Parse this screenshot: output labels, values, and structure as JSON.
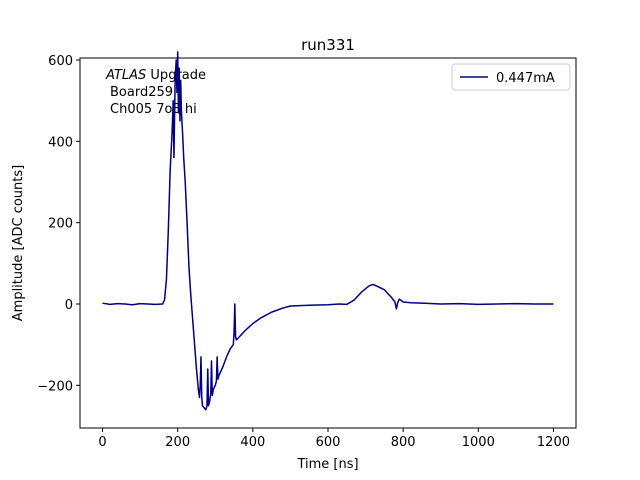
{
  "chart_data": {
    "type": "line",
    "title": "run331",
    "x_label": "Time [ns]",
    "y_label": "Amplitude [ADC counts]",
    "annotations": [
      "ATLAS",
      "Upgrade",
      "Board259",
      "Ch005 7o8 hi"
    ],
    "legend": "upper right",
    "x": [
      0,
      20,
      40,
      60,
      80,
      100,
      120,
      140,
      160,
      165,
      170,
      175,
      180,
      185,
      188,
      190,
      193,
      196,
      198,
      200,
      202,
      204,
      206,
      208,
      210,
      213,
      216,
      220,
      225,
      230,
      235,
      240,
      245,
      250,
      255,
      258,
      260,
      262,
      264,
      266,
      270,
      275,
      278,
      280,
      282,
      285,
      288,
      290,
      292,
      295,
      300,
      303,
      305,
      307,
      310,
      320,
      330,
      340,
      348,
      350,
      352,
      354,
      356,
      360,
      380,
      400,
      420,
      450,
      480,
      500,
      550,
      600,
      630,
      650,
      670,
      690,
      710,
      720,
      730,
      750,
      770,
      778,
      782,
      786,
      790,
      800,
      820,
      850,
      900,
      950,
      1000,
      1050,
      1100,
      1150,
      1200
    ],
    "series": [
      {
        "name": "0.447mA",
        "color": "#000080",
        "values": [
          2,
          -1,
          1,
          0,
          -2,
          1,
          0,
          -1,
          0,
          10,
          60,
          180,
          330,
          420,
          500,
          360,
          540,
          600,
          520,
          620,
          470,
          580,
          450,
          550,
          470,
          420,
          360,
          300,
          200,
          90,
          20,
          -40,
          -100,
          -160,
          -210,
          -230,
          -200,
          -130,
          -230,
          -250,
          -255,
          -260,
          -250,
          -160,
          -250,
          -240,
          -220,
          -140,
          -225,
          -210,
          -200,
          -190,
          -130,
          -185,
          -175,
          -155,
          -130,
          -110,
          -100,
          -70,
          0,
          -80,
          -88,
          -85,
          -65,
          -48,
          -35,
          -20,
          -10,
          -5,
          -3,
          -2,
          0,
          -1,
          10,
          30,
          45,
          48,
          44,
          35,
          15,
          5,
          -12,
          5,
          12,
          5,
          3,
          2,
          0,
          1,
          -1,
          0,
          1,
          0,
          0
        ]
      }
    ],
    "xlim": [
      -60,
      1260
    ],
    "ylim": [
      -305,
      605
    ],
    "xticks": [
      0,
      200,
      400,
      600,
      800,
      1000,
      1200
    ],
    "yticks": [
      {
        "value": -200,
        "label": "−200"
      },
      0,
      200,
      400,
      600
    ],
    "grid": false
  }
}
